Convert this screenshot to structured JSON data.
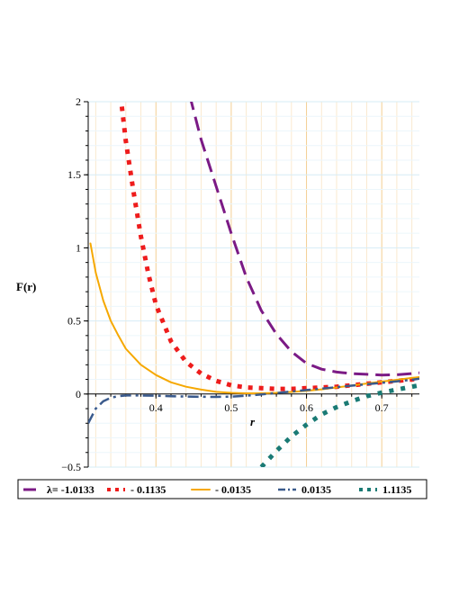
{
  "chart_data": {
    "type": "line",
    "xlabel": "r",
    "ylabel": "F(r)",
    "xlim": [
      0.31,
      0.75
    ],
    "ylim": [
      -0.5,
      2.0
    ],
    "x_ticks": [
      {
        "value": 0.4,
        "label": "0.4"
      },
      {
        "value": 0.5,
        "label": "0.5"
      },
      {
        "value": 0.6,
        "label": "0.6"
      },
      {
        "value": 0.7,
        "label": "0.7"
      }
    ],
    "y_ticks": [
      {
        "value": -0.5,
        "label": "−0.5"
      },
      {
        "value": 0,
        "label": "0"
      },
      {
        "value": 0.5,
        "label": "0.5"
      },
      {
        "value": 1,
        "label": "1"
      },
      {
        "value": 1.5,
        "label": "1.5"
      },
      {
        "value": 2,
        "label": "2"
      }
    ],
    "grid": true,
    "legend_position": "bottom",
    "series": [
      {
        "name": "λ= -1.0133",
        "color": "#7b1a85",
        "style": "dash",
        "x": [
          0.445,
          0.46,
          0.48,
          0.5,
          0.52,
          0.54,
          0.56,
          0.58,
          0.6,
          0.62,
          0.64,
          0.66,
          0.68,
          0.7,
          0.72,
          0.74,
          0.75
        ],
        "y": [
          2.04,
          1.74,
          1.42,
          1.1,
          0.8,
          0.57,
          0.41,
          0.29,
          0.21,
          0.17,
          0.15,
          0.14,
          0.135,
          0.13,
          0.132,
          0.14,
          0.145
        ]
      },
      {
        "name": "- 0.1135",
        "color": "#ee1c1c",
        "style": "dot",
        "x": [
          0.353,
          0.36,
          0.37,
          0.38,
          0.39,
          0.4,
          0.42,
          0.44,
          0.46,
          0.48,
          0.5,
          0.52,
          0.54,
          0.56,
          0.58,
          0.6,
          0.62,
          0.64,
          0.66,
          0.68,
          0.7,
          0.72,
          0.74,
          0.75
        ],
        "y": [
          2.04,
          1.73,
          1.39,
          1.08,
          0.82,
          0.61,
          0.36,
          0.22,
          0.14,
          0.09,
          0.06,
          0.045,
          0.04,
          0.035,
          0.035,
          0.04,
          0.045,
          0.05,
          0.06,
          0.07,
          0.08,
          0.09,
          0.1,
          0.105
        ]
      },
      {
        "name": "- 0.0135",
        "color": "#f6a800",
        "style": "solid",
        "x": [
          0.313,
          0.32,
          0.33,
          0.34,
          0.35,
          0.36,
          0.38,
          0.4,
          0.42,
          0.44,
          0.46,
          0.48,
          0.5,
          0.52,
          0.54,
          0.56,
          0.58,
          0.6,
          0.62,
          0.64,
          0.66,
          0.68,
          0.7,
          0.72,
          0.74,
          0.75
        ],
        "y": [
          1.03,
          0.83,
          0.64,
          0.5,
          0.4,
          0.31,
          0.2,
          0.13,
          0.08,
          0.05,
          0.03,
          0.015,
          0.008,
          0.005,
          0.005,
          0.008,
          0.014,
          0.022,
          0.032,
          0.045,
          0.058,
          0.072,
          0.085,
          0.097,
          0.11,
          0.116
        ]
      },
      {
        "name": "0.0135",
        "color": "#3a5a8c",
        "style": "dashdot",
        "x": [
          0.31,
          0.32,
          0.33,
          0.34,
          0.35,
          0.36,
          0.38,
          0.4,
          0.42,
          0.44,
          0.46,
          0.48,
          0.5,
          0.52,
          0.54,
          0.56,
          0.58,
          0.6,
          0.62,
          0.64,
          0.66,
          0.68,
          0.7,
          0.72,
          0.74,
          0.75
        ],
        "y": [
          -0.2,
          -0.1,
          -0.05,
          -0.025,
          -0.015,
          -0.01,
          -0.01,
          -0.012,
          -0.015,
          -0.017,
          -0.019,
          -0.02,
          -0.018,
          -0.012,
          -0.003,
          0.007,
          0.017,
          0.027,
          0.037,
          0.047,
          0.057,
          0.067,
          0.077,
          0.087,
          0.097,
          0.105
        ]
      },
      {
        "name": "1.1135",
        "color": "#1a7a74",
        "style": "squaredot",
        "x": [
          0.54,
          0.56,
          0.58,
          0.6,
          0.62,
          0.64,
          0.66,
          0.68,
          0.7,
          0.72,
          0.74,
          0.75
        ],
        "y": [
          -0.5,
          -0.39,
          -0.29,
          -0.21,
          -0.14,
          -0.09,
          -0.05,
          -0.015,
          0.01,
          0.03,
          0.05,
          0.06
        ]
      }
    ]
  }
}
